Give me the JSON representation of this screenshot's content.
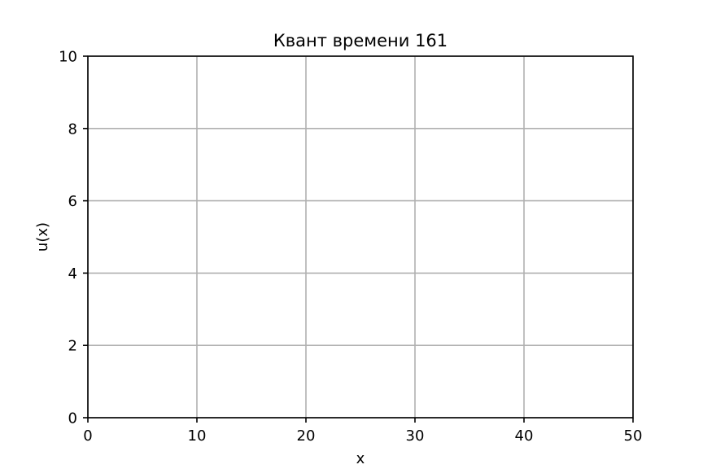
{
  "chart_data": {
    "type": "line",
    "title": "Квант времени 161",
    "xlabel": "x",
    "ylabel": "u(x)",
    "xlim": [
      0,
      50
    ],
    "ylim": [
      0,
      10
    ],
    "xticks": [
      0,
      10,
      20,
      30,
      40,
      50
    ],
    "yticks": [
      0,
      2,
      4,
      6,
      8,
      10
    ],
    "xtick_labels": [
      "0",
      "10",
      "20",
      "30",
      "40",
      "50"
    ],
    "ytick_labels": [
      "0",
      "2",
      "4",
      "6",
      "8",
      "10"
    ],
    "grid": true,
    "series": []
  },
  "colors": {
    "grid": "#b0b0b0",
    "axes": "#000000",
    "background": "#ffffff"
  }
}
